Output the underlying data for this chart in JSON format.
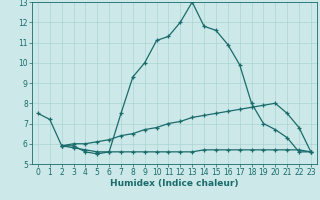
{
  "xlabel": "Humidex (Indice chaleur)",
  "bg_color": "#cce8e8",
  "line_color": "#1a6b6b",
  "grid_color": "#aad4d4",
  "xlim": [
    -0.5,
    23.5
  ],
  "ylim": [
    5,
    13
  ],
  "yticks": [
    5,
    6,
    7,
    8,
    9,
    10,
    11,
    12,
    13
  ],
  "xticks": [
    0,
    1,
    2,
    3,
    4,
    5,
    6,
    7,
    8,
    9,
    10,
    11,
    12,
    13,
    14,
    15,
    16,
    17,
    18,
    19,
    20,
    21,
    22,
    23
  ],
  "line1_x": [
    0,
    1,
    2,
    3,
    4,
    5,
    6,
    7,
    8,
    9,
    10,
    11,
    12,
    13,
    14,
    15,
    16,
    17,
    18,
    19,
    20,
    21,
    22,
    23
  ],
  "line1_y": [
    7.5,
    7.2,
    5.9,
    5.9,
    5.6,
    5.5,
    5.6,
    7.5,
    9.3,
    10.0,
    11.1,
    11.3,
    12.0,
    13.0,
    11.8,
    11.6,
    10.9,
    9.9,
    8.0,
    7.0,
    6.7,
    6.3,
    5.6,
    5.6
  ],
  "line2_x": [
    2,
    3,
    4,
    5,
    6,
    7,
    8,
    9,
    10,
    11,
    12,
    13,
    14,
    15,
    16,
    17,
    18,
    19,
    20,
    21,
    22,
    23
  ],
  "line2_y": [
    5.9,
    6.0,
    6.0,
    6.1,
    6.2,
    6.4,
    6.5,
    6.7,
    6.8,
    7.0,
    7.1,
    7.3,
    7.4,
    7.5,
    7.6,
    7.7,
    7.8,
    7.9,
    8.0,
    7.5,
    6.8,
    5.6
  ],
  "line3_x": [
    2,
    3,
    4,
    5,
    6,
    7,
    8,
    9,
    10,
    11,
    12,
    13,
    14,
    15,
    16,
    17,
    18,
    19,
    20,
    21,
    22,
    23
  ],
  "line3_y": [
    5.9,
    5.8,
    5.7,
    5.6,
    5.6,
    5.6,
    5.6,
    5.6,
    5.6,
    5.6,
    5.6,
    5.6,
    5.7,
    5.7,
    5.7,
    5.7,
    5.7,
    5.7,
    5.7,
    5.7,
    5.7,
    5.6
  ]
}
